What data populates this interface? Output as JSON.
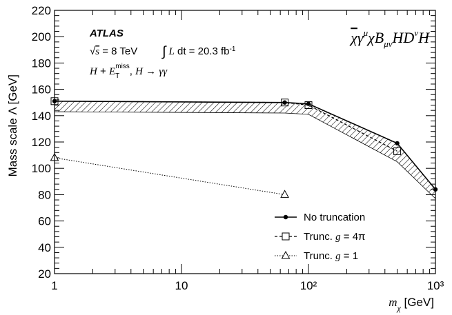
{
  "chart_data": {
    "type": "line",
    "ylabel": "Mass scale Λ [GeV]",
    "xlabel": "m_χ [GeV]",
    "x_scale": "log",
    "xlim": [
      1,
      1000
    ],
    "ylim": [
      20,
      220
    ],
    "y_ticks": [
      20,
      40,
      60,
      80,
      100,
      120,
      140,
      160,
      180,
      200,
      220
    ],
    "x_tick_labels": [
      "1",
      "10",
      "10²",
      "10³"
    ],
    "annotations": {
      "experiment": "ATLAS",
      "energy": "√s = 8 TeV",
      "lumi": "∫ L dt = 20.3 fb⁻¹",
      "channel": "H + E_T^miss, H → γγ",
      "operator": "χ̄γ^μχB_μνHD^νH"
    },
    "series": [
      {
        "name": "No truncation",
        "marker": "filled-circle",
        "line": "solid",
        "x": [
          1,
          65,
          100,
          500,
          1000
        ],
        "y": [
          151,
          150,
          149,
          119,
          84
        ]
      },
      {
        "name": "Trunc. g = 4π",
        "marker": "open-square",
        "line": "dashed",
        "x": [
          1,
          65,
          100,
          500
        ],
        "y": [
          151,
          150,
          148,
          113
        ]
      },
      {
        "name": "Trunc. g = 1",
        "marker": "open-triangle",
        "line": "dotted",
        "x": [
          1,
          65
        ],
        "y": [
          108,
          80
        ]
      }
    ],
    "excluded_band": {
      "x": [
        1,
        65,
        100,
        500,
        1000
      ],
      "y_lower": [
        143,
        142,
        141,
        105,
        77
      ]
    },
    "legend_position": "bottom-right"
  }
}
